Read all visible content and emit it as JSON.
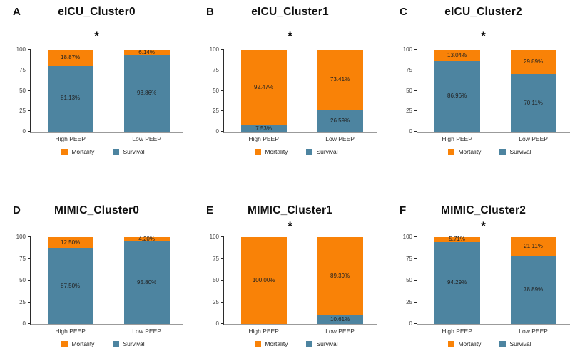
{
  "figure": {
    "legend": {
      "mortality_label": "Mortality",
      "survival_label": "Survival"
    },
    "colors": {
      "mortality": "#F98207",
      "survival": "#4D84A0",
      "baseline": "#9B9B9B",
      "yaxis": "#2B2B2B",
      "label_text": "#222222"
    },
    "panels": [
      {
        "letter": "A",
        "title": "eICU_Cluster0",
        "significance": "*"
      },
      {
        "letter": "B",
        "title": "eICU_Cluster1",
        "significance": "*"
      },
      {
        "letter": "C",
        "title": "eICU_Cluster2",
        "significance": "*"
      },
      {
        "letter": "D",
        "title": "MIMIC_Cluster0",
        "significance": ""
      },
      {
        "letter": "E",
        "title": "MIMIC_Cluster1",
        "significance": "*"
      },
      {
        "letter": "F",
        "title": "MIMIC_Cluster2",
        "significance": "*"
      }
    ]
  },
  "chart_data": [
    {
      "type": "bar",
      "stacked": true,
      "panel": "A",
      "title": "eICU_Cluster0",
      "significance": "*",
      "categories": [
        "High PEEP",
        "Low PEEP"
      ],
      "series": [
        {
          "name": "Mortality",
          "values": [
            18.87,
            6.14
          ],
          "labels": [
            "18.87%",
            "6.14%"
          ]
        },
        {
          "name": "Survival",
          "values": [
            81.13,
            93.86
          ],
          "labels": [
            "81.13%",
            "93.86%"
          ]
        }
      ],
      "ylim": [
        0,
        100
      ],
      "yticks": [
        0,
        25,
        50,
        75,
        100
      ],
      "grid": false,
      "legend_position": "bottom"
    },
    {
      "type": "bar",
      "stacked": true,
      "panel": "B",
      "title": "eICU_Cluster1",
      "significance": "*",
      "categories": [
        "High PEEP",
        "Low PEEP"
      ],
      "series": [
        {
          "name": "Mortality",
          "values": [
            92.47,
            73.41
          ],
          "labels": [
            "92.47%",
            "73.41%"
          ]
        },
        {
          "name": "Survival",
          "values": [
            7.53,
            26.59
          ],
          "labels": [
            "7.53%",
            "26.59%"
          ]
        }
      ],
      "ylim": [
        0,
        100
      ],
      "yticks": [
        0,
        25,
        50,
        75,
        100
      ],
      "grid": false,
      "legend_position": "bottom"
    },
    {
      "type": "bar",
      "stacked": true,
      "panel": "C",
      "title": "eICU_Cluster2",
      "significance": "*",
      "categories": [
        "High PEEP",
        "Low PEEP"
      ],
      "series": [
        {
          "name": "Mortality",
          "values": [
            13.04,
            29.89
          ],
          "labels": [
            "13.04%",
            "29.89%"
          ]
        },
        {
          "name": "Survival",
          "values": [
            86.96,
            70.11
          ],
          "labels": [
            "86.96%",
            "70.11%"
          ]
        }
      ],
      "ylim": [
        0,
        100
      ],
      "yticks": [
        0,
        25,
        50,
        75,
        100
      ],
      "grid": false,
      "legend_position": "bottom"
    },
    {
      "type": "bar",
      "stacked": true,
      "panel": "D",
      "title": "MIMIC_Cluster0",
      "significance": "",
      "categories": [
        "High PEEP",
        "Low PEEP"
      ],
      "series": [
        {
          "name": "Mortality",
          "values": [
            12.5,
            4.2
          ],
          "labels": [
            "12.50%",
            "4.20%"
          ]
        },
        {
          "name": "Survival",
          "values": [
            87.5,
            95.8
          ],
          "labels": [
            "87.50%",
            "95.80%"
          ]
        }
      ],
      "ylim": [
        0,
        100
      ],
      "yticks": [
        0,
        25,
        50,
        75,
        100
      ],
      "grid": false,
      "legend_position": "bottom"
    },
    {
      "type": "bar",
      "stacked": true,
      "panel": "E",
      "title": "MIMIC_Cluster1",
      "significance": "*",
      "categories": [
        "High PEEP",
        "Low PEEP"
      ],
      "series": [
        {
          "name": "Mortality",
          "values": [
            100.0,
            89.39
          ],
          "labels": [
            "100.00%",
            "89.39%"
          ]
        },
        {
          "name": "Survival",
          "values": [
            0,
            10.61
          ],
          "labels": [
            "",
            "10.61%"
          ]
        }
      ],
      "ylim": [
        0,
        100
      ],
      "yticks": [
        0,
        25,
        50,
        75,
        100
      ],
      "grid": false,
      "legend_position": "bottom"
    },
    {
      "type": "bar",
      "stacked": true,
      "panel": "F",
      "title": "MIMIC_Cluster2",
      "significance": "*",
      "categories": [
        "High PEEP",
        "Low PEEP"
      ],
      "series": [
        {
          "name": "Mortality",
          "values": [
            5.71,
            21.11
          ],
          "labels": [
            "5.71%",
            "21.11%"
          ]
        },
        {
          "name": "Survival",
          "values": [
            94.29,
            78.89
          ],
          "labels": [
            "94.29%",
            "78.89%"
          ]
        }
      ],
      "ylim": [
        0,
        100
      ],
      "yticks": [
        0,
        25,
        50,
        75,
        100
      ],
      "grid": false,
      "legend_position": "bottom"
    }
  ]
}
